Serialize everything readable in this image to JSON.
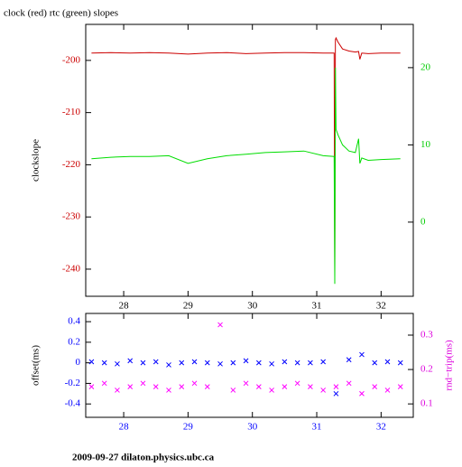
{
  "chart_data": [
    {
      "type": "line",
      "title": "clock (red) rtc (green) slopes",
      "ylabel": "clockslope",
      "xlim": [
        27.41,
        32.5
      ],
      "xticks": [
        28,
        29,
        30,
        31,
        32
      ],
      "xtick_color": "#000000",
      "ylim": [
        -245.2,
        -193.1
      ],
      "yticks": [
        -200,
        -210,
        -220,
        -230,
        -240
      ],
      "ytick_color": "#cc0000",
      "y2lim": [
        -9.6,
        25.6
      ],
      "y2ticks": [
        0,
        10,
        20
      ],
      "y2tick_color": "#00cc00",
      "series": [
        {
          "name": "clock",
          "color": "#cc0000",
          "x": [
            27.5,
            27.8,
            28.1,
            28.4,
            28.7,
            29.0,
            29.3,
            29.6,
            29.9,
            30.2,
            30.5,
            30.8,
            31.1,
            31.27,
            31.28,
            31.29,
            31.3,
            31.33,
            31.4,
            31.5,
            31.6,
            31.65,
            31.67,
            31.7,
            31.8,
            32.0,
            32.3
          ],
          "values": [
            -198.6,
            -198.5,
            -198.6,
            -198.5,
            -198.6,
            -198.8,
            -198.6,
            -198.5,
            -198.7,
            -198.6,
            -198.5,
            -198.5,
            -198.6,
            -198.6,
            -241,
            -196,
            -195.7,
            -196.5,
            -197.8,
            -198.2,
            -198.4,
            -198.3,
            -199.8,
            -198.6,
            -198.7,
            -198.6,
            -198.6
          ]
        },
        {
          "name": "rtc",
          "color": "#00dd00",
          "axis": "y2",
          "x": [
            27.5,
            27.8,
            28.1,
            28.4,
            28.7,
            29.0,
            29.3,
            29.6,
            29.9,
            30.2,
            30.5,
            30.8,
            31.1,
            31.27,
            31.28,
            31.29,
            31.3,
            31.33,
            31.4,
            31.5,
            31.6,
            31.65,
            31.67,
            31.7,
            31.8,
            32.0,
            32.3
          ],
          "values": [
            8.2,
            8.4,
            8.5,
            8.5,
            8.6,
            7.6,
            8.2,
            8.6,
            8.8,
            9.0,
            9.1,
            9.2,
            8.6,
            8.5,
            -8,
            20,
            12,
            11.3,
            10,
            9.2,
            9,
            10.8,
            7.6,
            8.3,
            8,
            8.1,
            8.2
          ]
        }
      ]
    },
    {
      "type": "scatter",
      "ylabel": "offset(ms)",
      "y2label": "rnd−trip(ms)",
      "xlim": [
        27.41,
        32.5
      ],
      "xticks": [
        28,
        29,
        30,
        31,
        32
      ],
      "xtick_color": "#0000ff",
      "ylim": [
        -0.53,
        0.48
      ],
      "yticks": [
        -0.4,
        -0.2,
        0,
        0.2,
        0.4
      ],
      "ytick_color": "#0000ff",
      "y2lim": [
        0.061,
        0.363
      ],
      "y2ticks": [
        0.1,
        0.2,
        0.3
      ],
      "y2tick_color": "#dd00dd",
      "series": [
        {
          "name": "offset",
          "color": "#0000ff",
          "x": [
            27.5,
            27.7,
            27.9,
            28.1,
            28.3,
            28.5,
            28.7,
            28.9,
            29.1,
            29.3,
            29.5,
            29.7,
            29.9,
            30.1,
            30.3,
            30.5,
            30.7,
            30.9,
            31.1,
            31.3,
            31.5,
            31.7,
            31.9,
            32.1,
            32.3
          ],
          "values": [
            0.01,
            0.0,
            -0.01,
            0.02,
            0.0,
            0.01,
            -0.02,
            0.0,
            0.01,
            0.0,
            -0.01,
            0.0,
            0.02,
            0.0,
            -0.01,
            0.01,
            0.0,
            0.0,
            0.01,
            -0.3,
            0.03,
            0.08,
            0.0,
            0.01,
            0.0
          ]
        },
        {
          "name": "rnd-trip",
          "color": "#ff00ff",
          "axis": "y2",
          "x": [
            27.5,
            27.7,
            27.9,
            28.1,
            28.3,
            28.5,
            28.7,
            28.9,
            29.1,
            29.3,
            29.5,
            29.7,
            29.9,
            30.1,
            30.3,
            30.5,
            30.7,
            30.9,
            31.1,
            31.3,
            31.5,
            31.7,
            31.9,
            32.1,
            32.3
          ],
          "values": [
            0.15,
            0.16,
            0.14,
            0.15,
            0.16,
            0.15,
            0.14,
            0.15,
            0.16,
            0.15,
            0.33,
            0.14,
            0.16,
            0.15,
            0.14,
            0.15,
            0.16,
            0.15,
            0.14,
            0.15,
            0.16,
            0.13,
            0.15,
            0.14,
            0.15
          ]
        }
      ]
    }
  ],
  "footer": "2009-09-27 dilaton.physics.ubc.ca"
}
